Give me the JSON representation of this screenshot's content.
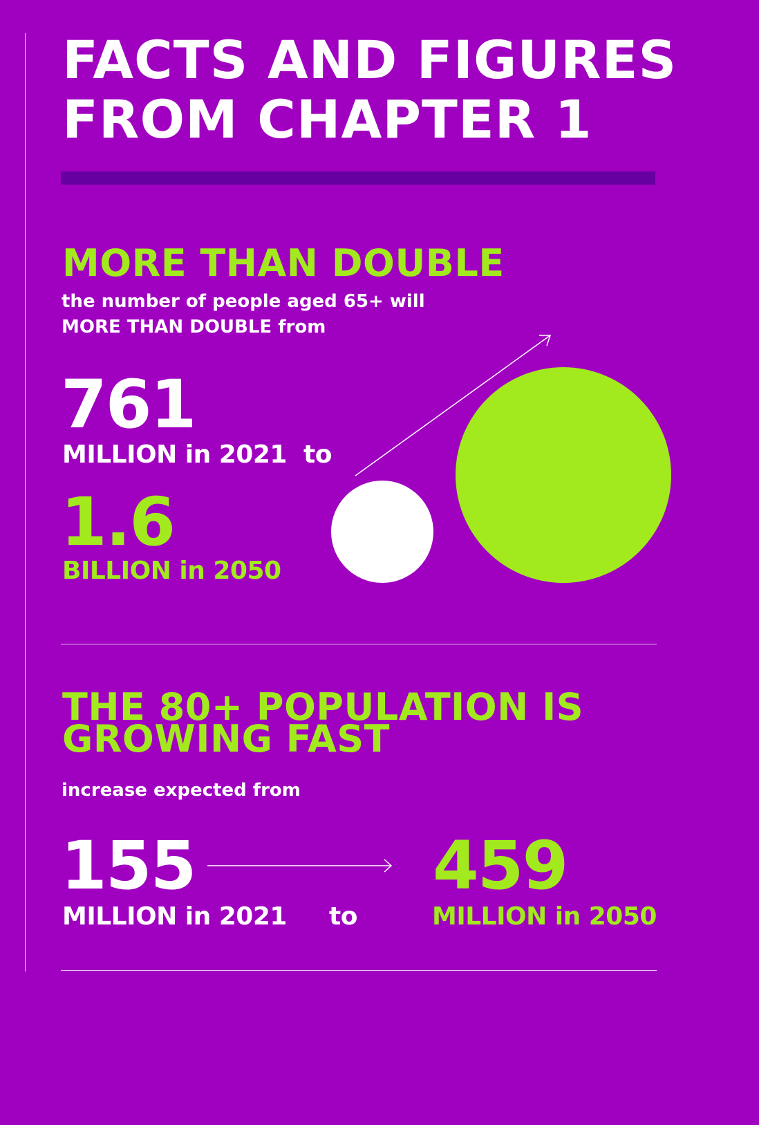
{
  "title_lines": [
    "FACTS AND FIGURES",
    "FROM CHAPTER 1"
  ],
  "colors": {
    "background": "#a000c0",
    "accent_green": "#a2ea1e",
    "bar": "#6600a0",
    "text": "#ffffff"
  },
  "section1": {
    "headline": "MORE THAN DOUBLE",
    "subtext_lines": [
      "the number of people aged 65+ will",
      "MORE THAN DOUBLE from"
    ],
    "from_value": "761",
    "from_label": "MILLION in 2021  to",
    "to_value": "1.6",
    "to_label": "BILLION in 2050"
  },
  "section2": {
    "headline_lines": [
      "THE 80+ POPULATION IS",
      "GROWING FAST"
    ],
    "subtext": "increase expected from",
    "from_value": "155",
    "from_label": "MILLION in 2021",
    "connector": "to",
    "to_value": "459",
    "to_label": "MILLION in 2050"
  }
}
